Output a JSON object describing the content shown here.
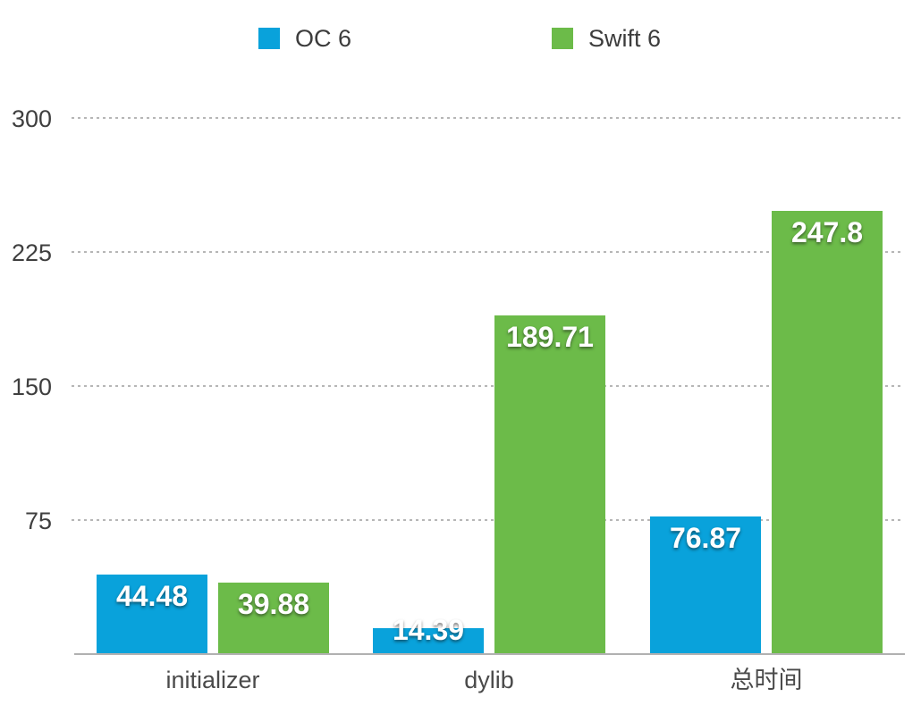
{
  "legend": {
    "items": [
      {
        "label": "OC 6",
        "color": "#09a2db"
      },
      {
        "label": "Swift 6",
        "color": "#6cbb49"
      }
    ]
  },
  "chart_data": {
    "type": "bar",
    "title": "",
    "xlabel": "",
    "ylabel": "",
    "categories": [
      "initializer",
      "dylib",
      "总时间"
    ],
    "series": [
      {
        "name": "OC 6",
        "color": "#09a2db",
        "values": [
          44.48,
          14.39,
          76.87
        ],
        "labels": [
          "44.48",
          "14.39",
          "76.87"
        ]
      },
      {
        "name": "Swift 6",
        "color": "#6cbb49",
        "values": [
          39.88,
          189.71,
          247.8
        ],
        "labels": [
          "39.88",
          "189.71",
          "247.8"
        ]
      }
    ],
    "y_ticks": [
      300,
      225,
      150,
      75
    ],
    "ylim": [
      0,
      300
    ],
    "grid": "horizontal-dashed",
    "legend_position": "top-center"
  },
  "colors": {
    "background": "#ffffff",
    "grid_line": "#b6b6b6",
    "axis_line": "#b1b1b1",
    "tick_label": "#3f3f3f",
    "category_label": "#4a4a4a",
    "legend_label": "#3c3c3c",
    "value_label": "#ffffff"
  }
}
